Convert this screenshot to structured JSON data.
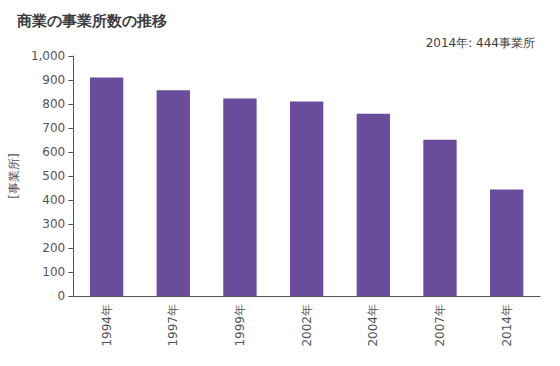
{
  "chart_data": {
    "type": "bar",
    "title": "商業の事業所数の推移",
    "ylabel": "[事業所]",
    "annotation": "2014年: 444事業所",
    "categories": [
      "1994年",
      "1997年",
      "1999年",
      "2002年",
      "2004年",
      "2007年",
      "2014年"
    ],
    "values": [
      910,
      857,
      823,
      810,
      759,
      651,
      444
    ],
    "color": "#6A4C9C",
    "ylim": [
      0,
      1000
    ],
    "yticks": [
      0,
      100,
      200,
      300,
      400,
      500,
      600,
      700,
      800,
      900,
      {
        "value": 1000,
        "label": "1,000"
      }
    ],
    "grid": false
  }
}
